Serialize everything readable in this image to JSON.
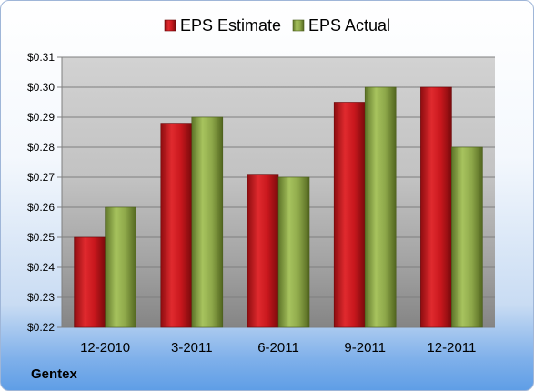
{
  "company": "Gentex",
  "colors": {
    "estimate": "#c8171d",
    "actual": "#8ea84a"
  },
  "chart_data": {
    "type": "bar",
    "categories": [
      "12-2010",
      "3-2011",
      "6-2011",
      "9-2011",
      "12-2011"
    ],
    "series": [
      {
        "name": "EPS Estimate",
        "values": [
          0.25,
          0.288,
          0.271,
          0.295,
          0.3
        ]
      },
      {
        "name": "EPS Actual",
        "values": [
          0.26,
          0.29,
          0.27,
          0.3,
          0.28
        ]
      }
    ],
    "yticks": [
      "$0.22",
      "$0.23",
      "$0.24",
      "$0.25",
      "$0.26",
      "$0.27",
      "$0.28",
      "$0.29",
      "$0.30",
      "$0.31"
    ],
    "ylim": [
      0.22,
      0.31
    ],
    "legend": "top",
    "grid": true
  }
}
